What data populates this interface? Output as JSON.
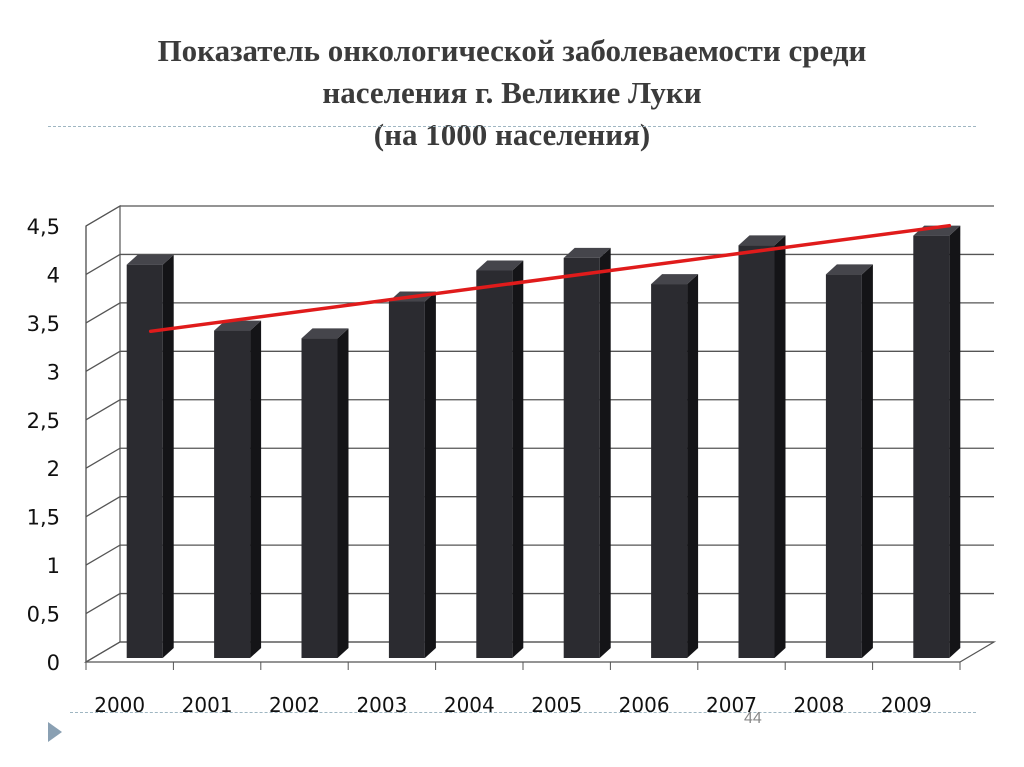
{
  "title": {
    "line1": "Показатель онкологической заболеваемости среди",
    "line2": "населения г. Великие Луки",
    "line3": "(на 1000 населения)"
  },
  "page_number": "44",
  "icons": {
    "nav": "triangle-right-icon"
  },
  "colors": {
    "bar_front": "#2b2b30",
    "bar_side": "#141417",
    "bar_top": "#45454b",
    "trend": "#e01b1b",
    "grid": "#555555",
    "title": "#3b3b3b"
  },
  "chart_data": {
    "type": "bar",
    "categories": [
      "2000",
      "2001",
      "2002",
      "2003",
      "2004",
      "2005",
      "2006",
      "2007",
      "2008",
      "2009"
    ],
    "values": [
      4.08,
      3.4,
      3.32,
      3.7,
      4.02,
      4.15,
      3.88,
      4.28,
      3.98,
      4.38
    ],
    "trendline": {
      "type": "linear",
      "start": 3.31,
      "end": 4.4
    },
    "yticks": [
      "0",
      "0,5",
      "1",
      "1,5",
      "2",
      "2,5",
      "3",
      "3,5",
      "4",
      "4,5"
    ],
    "ylim": [
      0,
      4.5
    ],
    "grid": true,
    "legend": "none",
    "style": "3d-columns"
  }
}
